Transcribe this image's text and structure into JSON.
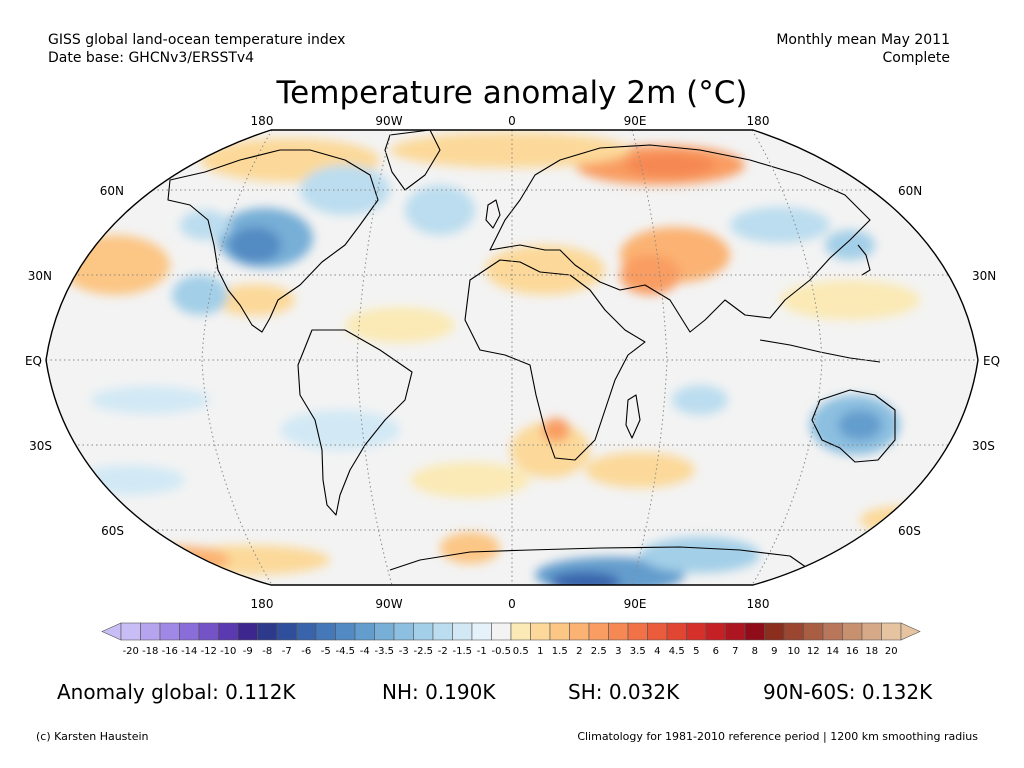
{
  "header": {
    "dataset": "GISS global land-ocean temperature index",
    "data_base": "Date base: GHCNv3/ERSSTv4",
    "period": "Monthly mean May 2011",
    "status": "Complete"
  },
  "map": {
    "title": "Temperature anomaly 2m (°C)",
    "lon_labels_top": [
      "180",
      "90W",
      "0",
      "90E",
      "180"
    ],
    "lon_labels_bottom": [
      "180",
      "90W",
      "0",
      "90E",
      "180"
    ],
    "lat_labels_left": [
      "60N",
      "30N",
      "EQ",
      "30S",
      "60S"
    ],
    "lat_labels_right": [
      "60N",
      "30N",
      "EQ",
      "30S",
      "60S"
    ],
    "colorbar": {
      "tick_labels": [
        "-20",
        "-18",
        "-16",
        "-14",
        "-12",
        "-10",
        "-9",
        "-8",
        "-7",
        "-6",
        "-5",
        "-4.5",
        "-4",
        "-3.5",
        "-3",
        "-2.5",
        "-2",
        "-1.5",
        "-1",
        "-0.5",
        "0.5",
        "1",
        "1.5",
        "2",
        "2.5",
        "3",
        "3.5",
        "4",
        "4.5",
        "5",
        "6",
        "7",
        "8",
        "9",
        "10",
        "12",
        "14",
        "16",
        "18",
        "20"
      ],
      "colors": [
        "#c9bdf5",
        "#b7a4ee",
        "#a088e6",
        "#8a6dd8",
        "#7453c7",
        "#5b39b0",
        "#3e268f",
        "#2d3a8c",
        "#2f4f9c",
        "#3964ac",
        "#4478b8",
        "#528bc3",
        "#639dcd",
        "#77afd7",
        "#8cbfe0",
        "#a3cfe8",
        "#bbddef",
        "#d2e9f5",
        "#e5f2fa",
        "#f3f3f3",
        "#fbeab5",
        "#fcd99a",
        "#fcc685",
        "#fbb272",
        "#f99d62",
        "#f68853",
        "#f17246",
        "#ea5c3b",
        "#e04632",
        "#d6302a",
        "#c52026",
        "#ad1521",
        "#900c1b",
        "#8b2e1d",
        "#9a4630",
        "#a95e44",
        "#b8775a",
        "#c79170",
        "#d6aa88",
        "#e6c4a2"
      ]
    }
  },
  "stats": {
    "global": "Anomaly global: 0.112K",
    "nh": "NH: 0.190K",
    "sh": "SH: 0.032K",
    "polar": "90N-60S: 0.132K"
  },
  "footer": {
    "copyright": "(c) Karsten Haustein",
    "climatology": "Climatology for 1981-2010 reference period | 1200 km smoothing radius"
  }
}
